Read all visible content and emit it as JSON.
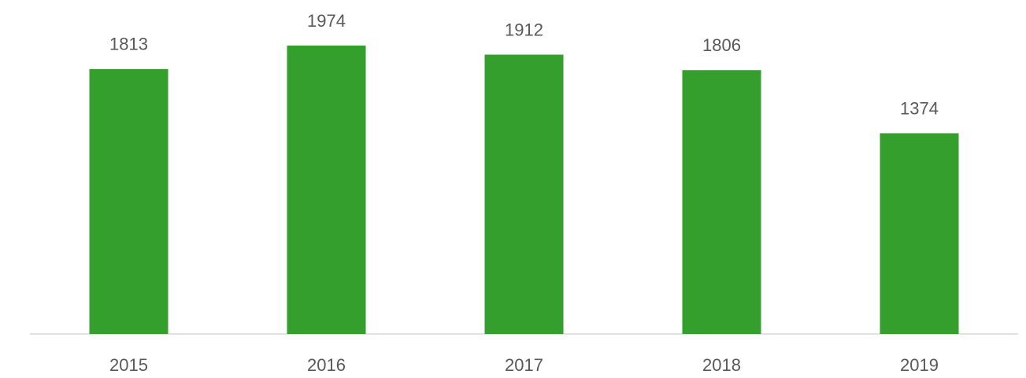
{
  "chart_data": {
    "type": "bar",
    "categories": [
      "2015",
      "2016",
      "2017",
      "2018",
      "2019"
    ],
    "values": [
      1813,
      1974,
      1912,
      1806,
      1374
    ],
    "color": "#349f2c"
  }
}
